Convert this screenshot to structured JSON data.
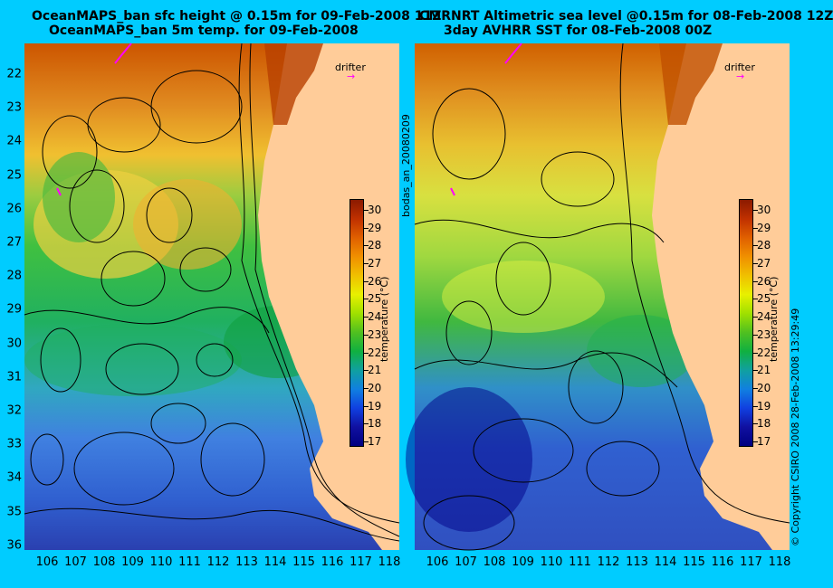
{
  "left_panel": {
    "title_line1": "OceanMAPS_ban sfc height @ 0.15m for 09-Feb-2008 11Z",
    "title_line2": "OceanMAPS_ban 5m temp. for 09-Feb-2008",
    "drifter_label": "drifter",
    "colorbar_label": "temperature (°C)"
  },
  "right_panel": {
    "title_line1": "CMRNRT Altimetric sea level  @0.15m  for 08-Feb-2008 12Z",
    "title_line2": "3day AVHRR SST for 08-Feb-2008 00Z",
    "drifter_label": "drifter",
    "colorbar_label": "temperature (°C)"
  },
  "side_text": {
    "run_id": "bodas_an_20080209",
    "copyright": "© Copyright CSIRO 2008  28-Feb-2008 13:29:49"
  },
  "axes": {
    "lat_ticks": [
      "22",
      "23",
      "24",
      "25",
      "26",
      "27",
      "28",
      "29",
      "30",
      "31",
      "32",
      "33",
      "34",
      "35",
      "36"
    ],
    "lon_ticks": [
      "106",
      "107",
      "108",
      "109",
      "110",
      "111",
      "112",
      "113",
      "114",
      "115",
      "116",
      "117",
      "118"
    ]
  },
  "colorbar": {
    "ticks": [
      "30",
      "29",
      "28",
      "27",
      "26",
      "25",
      "24",
      "23",
      "22",
      "21",
      "20",
      "19",
      "18",
      "17"
    ],
    "min": 16.5,
    "max": 30.5
  },
  "colors": {
    "background": "#00ccff",
    "land": "#ffcc99",
    "contour": "#000000",
    "drifter": "#ff00ff"
  }
}
